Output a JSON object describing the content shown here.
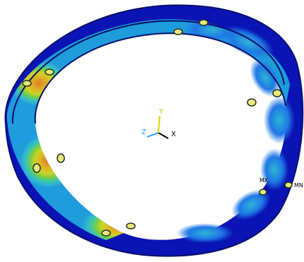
{
  "viewport": {
    "background": "#ffffff"
  },
  "model": {
    "shape": "ring",
    "palette": {
      "min": "#0a14b4",
      "low": "#1e78e6",
      "mid": "#2fb4d4",
      "midhigh": "#3ec9a3",
      "high": "#7fcc3f",
      "higher": "#c7d52b",
      "hot": "#dfb321",
      "max": "#e07a2c"
    }
  },
  "triad": {
    "x_label": "X",
    "y_label": "Y",
    "z_label": "Z",
    "x_color": "#000000",
    "y_color": "#d7d700",
    "z_color": "#1ea0ff"
  },
  "markers": {
    "mx_label": "MX",
    "mn_label": "MN"
  }
}
